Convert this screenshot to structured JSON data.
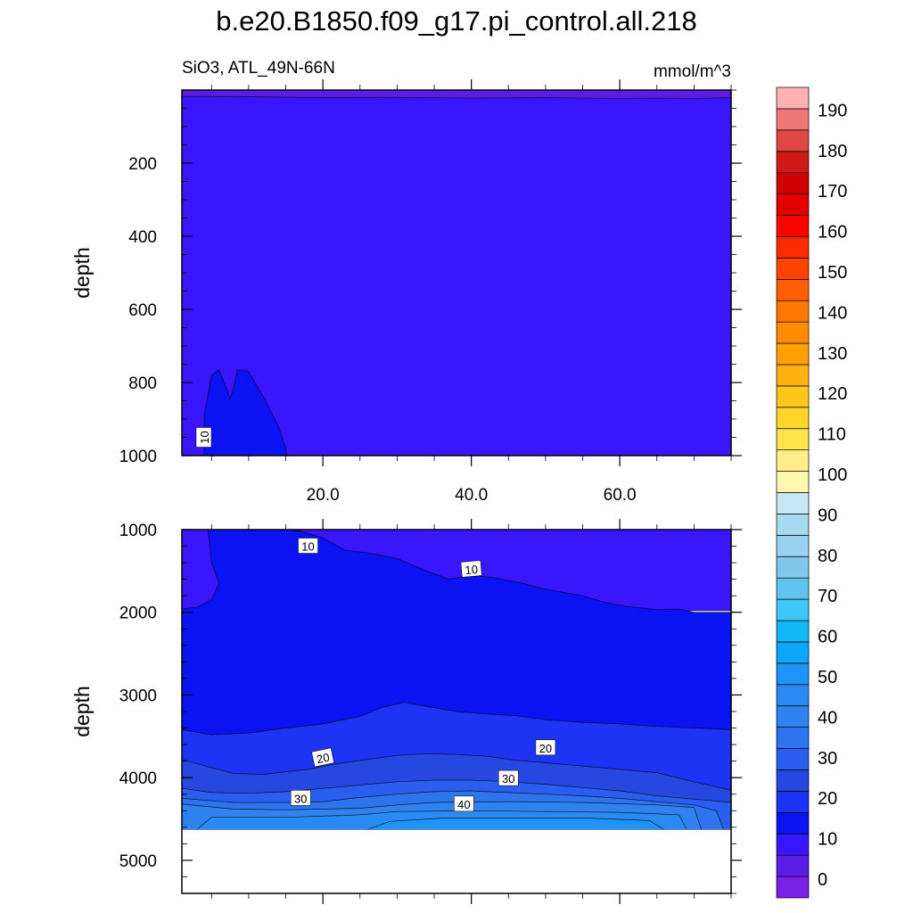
{
  "figure": {
    "title": "b.e20.B1850.f09_g17.pi_control.all.218",
    "left_subtitle": "SiO3, ATL_49N-66N",
    "right_subtitle": "mmol/m^3"
  },
  "chart_data": [
    {
      "type": "contour",
      "panel": "upper",
      "ylabel": "depth",
      "xlabel": "",
      "xlim": [
        1,
        75
      ],
      "ylim": [
        1000,
        0
      ],
      "x_ticks": [
        20,
        40,
        60
      ],
      "x_tick_labels": [
        "20.0",
        "40.0",
        "60.0"
      ],
      "y_ticks": [
        200,
        400,
        600,
        800,
        1000
      ],
      "y_tick_labels": [
        "200",
        "400",
        "600",
        "800",
        "1000"
      ],
      "contour_labels": [
        {
          "text": "10",
          "x": 4,
          "y": 950,
          "angle": -90
        }
      ],
      "regions": [
        {
          "name": "5-10",
          "color": "#3a16ff",
          "poly": [
            [
              1,
              17
            ],
            [
              75,
              17
            ],
            [
              75,
              1000
            ],
            [
              1,
              1000
            ]
          ]
        },
        {
          "name": "0-5",
          "color": "#5b1de6",
          "poly": [
            [
              1,
              17
            ],
            [
              10,
              18
            ],
            [
              20,
              21
            ],
            [
              30,
              20
            ],
            [
              40,
              22
            ],
            [
              50,
              21
            ],
            [
              60,
              23
            ],
            [
              65,
              22
            ],
            [
              70,
              23
            ],
            [
              75,
              21
            ],
            [
              75,
              0
            ],
            [
              1,
              0
            ]
          ]
        },
        {
          "name": "10-15",
          "color": "#0b13f2",
          "poly": [
            [
              4,
              1000
            ],
            [
              4,
              890
            ],
            [
              5,
              780
            ],
            [
              6,
              765
            ],
            [
              7,
              815
            ],
            [
              7.5,
              845
            ],
            [
              8,
              810
            ],
            [
              8.5,
              765
            ],
            [
              10,
              770
            ],
            [
              12,
              840
            ],
            [
              14,
              920
            ],
            [
              15,
              980
            ],
            [
              15.2,
              1000
            ]
          ]
        }
      ]
    },
    {
      "type": "contour",
      "panel": "lower",
      "ylabel": "depth",
      "xlabel": "",
      "xlim": [
        1,
        75
      ],
      "ylim": [
        5400,
        1000
      ],
      "x_ticks": [
        20,
        40,
        60
      ],
      "x_tick_labels": [
        "",
        "",
        ""
      ],
      "y_ticks": [
        1000,
        2000,
        3000,
        4000,
        5000
      ],
      "y_tick_labels": [
        "1000",
        "2000",
        "3000",
        "4000",
        "5000"
      ],
      "missing_below_depth": 4630,
      "contour_labels": [
        {
          "text": "10",
          "x": 18,
          "y": 1200,
          "angle": 0
        },
        {
          "text": "10",
          "x": 40,
          "y": 1480,
          "angle": -5
        },
        {
          "text": "20",
          "x": 20,
          "y": 3760,
          "angle": -12
        },
        {
          "text": "20",
          "x": 50,
          "y": 3640,
          "angle": 0
        },
        {
          "text": "30",
          "x": 17,
          "y": 4250,
          "angle": 0
        },
        {
          "text": "30",
          "x": 45,
          "y": 4010,
          "angle": 0
        },
        {
          "text": "40",
          "x": 39,
          "y": 4320,
          "angle": 0
        }
      ],
      "regions": [
        {
          "name": "5-10",
          "color": "#3a16ff",
          "poly": [
            [
              1,
              1000
            ],
            [
              75,
              1000
            ],
            [
              75,
              1980
            ],
            [
              1,
              1980
            ]
          ]
        },
        {
          "name": "10-15",
          "color": "#0b13f2",
          "poly": [
            [
              1,
              1960
            ],
            [
              3,
              1940
            ],
            [
              5,
              1850
            ],
            [
              6,
              1650
            ],
            [
              5,
              1400
            ],
            [
              4.5,
              1000
            ],
            [
              15,
              1000
            ],
            [
              17,
              1020
            ],
            [
              20,
              1100
            ],
            [
              23,
              1250
            ],
            [
              26,
              1280
            ],
            [
              30,
              1350
            ],
            [
              34,
              1500
            ],
            [
              37,
              1600
            ],
            [
              40,
              1550
            ],
            [
              43,
              1580
            ],
            [
              47,
              1650
            ],
            [
              50,
              1720
            ],
            [
              55,
              1800
            ],
            [
              58,
              1880
            ],
            [
              61,
              1930
            ],
            [
              65,
              1970
            ],
            [
              68,
              1960
            ],
            [
              70,
              2000
            ],
            [
              75,
              2000
            ],
            [
              75,
              4630
            ],
            [
              1,
              4630
            ]
          ]
        },
        {
          "name": "15-20",
          "color": "#1e33f3",
          "poly": [
            [
              1,
              3420
            ],
            [
              5,
              3480
            ],
            [
              10,
              3460
            ],
            [
              15,
              3400
            ],
            [
              20,
              3350
            ],
            [
              25,
              3260
            ],
            [
              28,
              3150
            ],
            [
              31,
              3090
            ],
            [
              34,
              3140
            ],
            [
              38,
              3200
            ],
            [
              42,
              3230
            ],
            [
              46,
              3250
            ],
            [
              50,
              3300
            ],
            [
              55,
              3330
            ],
            [
              60,
              3350
            ],
            [
              65,
              3380
            ],
            [
              70,
              3400
            ],
            [
              75,
              3420
            ],
            [
              75,
              4630
            ],
            [
              1,
              4630
            ]
          ]
        },
        {
          "name": "20-25",
          "color": "#2748e0",
          "poly": [
            [
              1,
              3780
            ],
            [
              5,
              3880
            ],
            [
              8,
              3950
            ],
            [
              12,
              3960
            ],
            [
              18,
              3900
            ],
            [
              22,
              3830
            ],
            [
              26,
              3780
            ],
            [
              30,
              3730
            ],
            [
              34,
              3710
            ],
            [
              38,
              3720
            ],
            [
              42,
              3740
            ],
            [
              46,
              3790
            ],
            [
              50,
              3820
            ],
            [
              55,
              3860
            ],
            [
              60,
              3900
            ],
            [
              65,
              3940
            ],
            [
              70,
              4050
            ],
            [
              75,
              4150
            ],
            [
              75,
              4630
            ],
            [
              1,
              4630
            ]
          ]
        },
        {
          "name": "25-30",
          "color": "#2a5ef0",
          "poly": [
            [
              1,
              4130
            ],
            [
              5,
              4180
            ],
            [
              10,
              4190
            ],
            [
              15,
              4170
            ],
            [
              20,
              4130
            ],
            [
              25,
              4090
            ],
            [
              30,
              4050
            ],
            [
              35,
              4030
            ],
            [
              40,
              4030
            ],
            [
              45,
              4050
            ],
            [
              50,
              4080
            ],
            [
              55,
              4120
            ],
            [
              60,
              4160
            ],
            [
              65,
              4220
            ],
            [
              70,
              4260
            ],
            [
              75,
              4300
            ],
            [
              75,
              4630
            ],
            [
              1,
              4630
            ]
          ]
        },
        {
          "name": "30-35",
          "color": "#2d74ee",
          "poly": [
            [
              1,
              4250
            ],
            [
              8,
              4300
            ],
            [
              15,
              4300
            ],
            [
              20,
              4290
            ],
            [
              25,
              4240
            ],
            [
              30,
              4200
            ],
            [
              35,
              4170
            ],
            [
              40,
              4160
            ],
            [
              45,
              4180
            ],
            [
              50,
              4200
            ],
            [
              55,
              4220
            ],
            [
              60,
              4250
            ],
            [
              65,
              4290
            ],
            [
              70,
              4330
            ],
            [
              73,
              4400
            ],
            [
              74,
              4630
            ],
            [
              1,
              4630
            ]
          ]
        },
        {
          "name": "35-40",
          "color": "#2f82ef",
          "poly": [
            [
              1,
              4320
            ],
            [
              8,
              4380
            ],
            [
              15,
              4390
            ],
            [
              25,
              4370
            ],
            [
              30,
              4330
            ],
            [
              35,
              4300
            ],
            [
              45,
              4290
            ],
            [
              55,
              4300
            ],
            [
              65,
              4330
            ],
            [
              70,
              4360
            ],
            [
              71,
              4630
            ],
            [
              1,
              4630
            ]
          ]
        },
        {
          "name": "40-45",
          "color": "#2a8af3",
          "poly": [
            [
              3,
              4630
            ],
            [
              5,
              4480
            ],
            [
              15,
              4480
            ],
            [
              25,
              4450
            ],
            [
              30,
              4410
            ],
            [
              40,
              4400
            ],
            [
              50,
              4410
            ],
            [
              60,
              4420
            ],
            [
              68,
              4450
            ],
            [
              69,
              4630
            ]
          ]
        },
        {
          "name": "45-50",
          "color": "#1d94f6",
          "poly": [
            [
              26,
              4630
            ],
            [
              29,
              4530
            ],
            [
              36,
              4490
            ],
            [
              46,
              4490
            ],
            [
              56,
              4490
            ],
            [
              64,
              4520
            ],
            [
              66,
              4630
            ]
          ]
        }
      ]
    }
  ],
  "colorbar": {
    "bottom_color": "#7a20e8",
    "top_color": "#ffb1b1",
    "labels": [
      "0",
      "10",
      "20",
      "30",
      "40",
      "50",
      "60",
      "70",
      "80",
      "90",
      "100",
      "110",
      "120",
      "130",
      "140",
      "150",
      "160",
      "170",
      "180",
      "190"
    ],
    "colors": [
      "#7a20e8",
      "#5b1de6",
      "#3a16ff",
      "#0b13f2",
      "#1e33f3",
      "#2748e0",
      "#2a5ef0",
      "#2d74ee",
      "#2f82ef",
      "#2a8af3",
      "#1d94f6",
      "#0aa7fb",
      "#12b8f6",
      "#3dc8f7",
      "#61c2ed",
      "#7fc9ec",
      "#98d2ef",
      "#a7d9f1",
      "#c6e6f6",
      "#fff7b0",
      "#ffee8a",
      "#ffe44a",
      "#ffd52a",
      "#ffc61a",
      "#ffb20f",
      "#ff9f00",
      "#ff8c00",
      "#ff7800",
      "#ff5e00",
      "#ff4400",
      "#ff2a00",
      "#ff0000",
      "#e40000",
      "#d00000",
      "#d01818",
      "#e04848",
      "#ee7878",
      "#ffb1b1"
    ]
  }
}
